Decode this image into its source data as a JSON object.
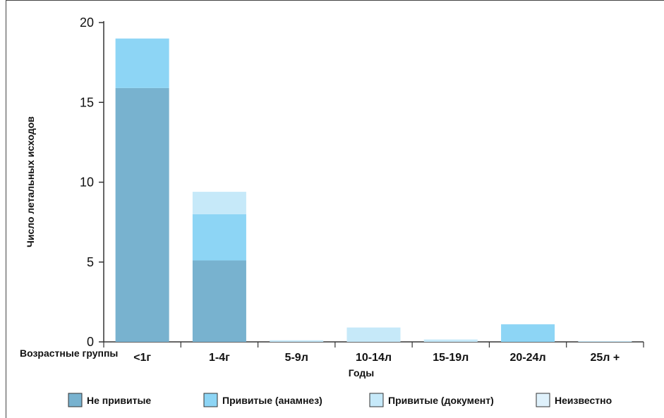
{
  "chart_data": {
    "type": "bar",
    "stacked": true,
    "categories": [
      "<1г",
      "1-4г",
      "5-9л",
      "10-14л",
      "15-19л",
      "20-24л",
      "25л +"
    ],
    "series": [
      {
        "name": "Не привитые",
        "color": "#78b2cf",
        "values": [
          15.9,
          5.1,
          0,
          0,
          0,
          0,
          0
        ]
      },
      {
        "name": "Привитые (анамнез)",
        "color": "#8dd5f5",
        "values": [
          3.1,
          2.9,
          0,
          0,
          0,
          1.1,
          0
        ]
      },
      {
        "name": "Привитые (документ)",
        "color": "#c6e9f9",
        "values": [
          0,
          1.4,
          0.1,
          0.9,
          0.15,
          0,
          0.05
        ]
      },
      {
        "name": "Неизвестно",
        "color": "#dff1fb",
        "values": [
          0,
          0,
          0,
          0,
          0,
          0,
          0
        ]
      }
    ],
    "ylabel": "Число летальных исходов",
    "xlabel": "Годы",
    "x_group_label": "Возрастные группы",
    "ylim": [
      0,
      20
    ],
    "yticks": [
      0,
      5,
      10,
      15,
      20
    ],
    "grid": false,
    "legend_position": "bottom"
  }
}
